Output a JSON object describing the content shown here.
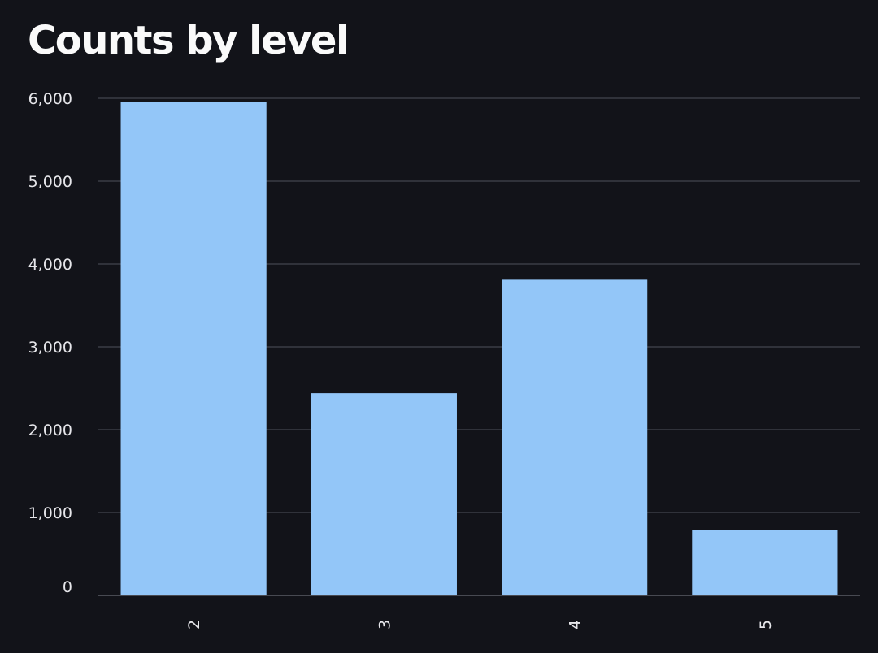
{
  "chart_data": {
    "type": "bar",
    "title": "Counts by level",
    "xlabel": "",
    "ylabel": "",
    "categories": [
      "2",
      "3",
      "4",
      "5"
    ],
    "values": [
      5960,
      2440,
      3810,
      790
    ],
    "ylim": [
      0,
      6000
    ],
    "yticks": [
      0,
      1000,
      2000,
      3000,
      4000,
      5000,
      6000
    ],
    "ytick_labels": [
      "0",
      "1,000",
      "2,000",
      "3,000",
      "4,000",
      "5,000",
      "6,000"
    ],
    "grid": true,
    "x_tick_rotation": "vertical",
    "colors": {
      "background": "#121319",
      "bar": "#93c6f8",
      "grid": "#3a3c46",
      "text": "#e6e6ea"
    }
  }
}
